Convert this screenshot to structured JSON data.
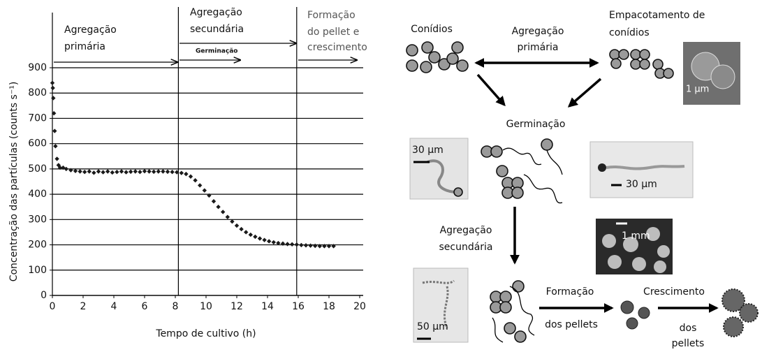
{
  "chart_data": {
    "type": "scatter",
    "x_label": "Tempo de cultivo (h)",
    "y_label": "Concentração das partículas (counts s⁻¹)",
    "x": [
      0,
      0.03,
      0.06,
      0.1,
      0.15,
      0.2,
      0.3,
      0.4,
      0.5,
      0.7,
      0.9,
      1.2,
      1.5,
      1.8,
      2.1,
      2.4,
      2.7,
      3.0,
      3.3,
      3.6,
      3.9,
      4.2,
      4.5,
      4.8,
      5.1,
      5.4,
      5.7,
      6.0,
      6.3,
      6.6,
      6.9,
      7.2,
      7.5,
      7.8,
      8.1,
      8.4,
      8.7,
      9.0,
      9.3,
      9.6,
      9.9,
      10.2,
      10.5,
      10.8,
      11.1,
      11.4,
      11.7,
      12.0,
      12.3,
      12.6,
      12.9,
      13.2,
      13.5,
      13.8,
      14.1,
      14.4,
      14.7,
      15.0,
      15.3,
      15.6,
      15.9,
      16.2,
      16.5,
      16.8,
      17.1,
      17.4,
      17.7,
      18.0,
      18.3
    ],
    "values": [
      840,
      820,
      780,
      720,
      650,
      590,
      540,
      515,
      505,
      505,
      500,
      495,
      492,
      490,
      488,
      490,
      485,
      490,
      487,
      490,
      486,
      488,
      490,
      487,
      489,
      490,
      488,
      491,
      490,
      489,
      490,
      490,
      489,
      488,
      487,
      484,
      480,
      470,
      455,
      435,
      415,
      395,
      372,
      350,
      330,
      310,
      292,
      276,
      262,
      250,
      240,
      232,
      225,
      219,
      214,
      210,
      207,
      205,
      203,
      202,
      201,
      199,
      198,
      197,
      196,
      195,
      195,
      195,
      195
    ],
    "color": "#1a1a1a",
    "xlim": [
      0,
      20
    ],
    "xticks": [
      0,
      2,
      4,
      6,
      8,
      10,
      12,
      14,
      16,
      18,
      20
    ],
    "ylim": [
      0,
      900
    ],
    "yticks": [
      0,
      100,
      200,
      300,
      400,
      500,
      600,
      700,
      800,
      900
    ],
    "grid": true,
    "phase_boundaries": [
      8.2,
      15.9
    ],
    "phase_labels": [
      [
        "Agregação",
        "primária"
      ],
      [
        "Agregação",
        "secundária"
      ],
      [
        "Formação",
        "do pellet e",
        "crescimento"
      ]
    ],
    "annotation": "Germinação"
  },
  "diagram": {
    "conidia": "Conídios",
    "primary": [
      "Agregação",
      "primária"
    ],
    "packing": [
      "Empacotamento de",
      "conídios"
    ],
    "scale_1um": "1 μm",
    "germination": "Germinação",
    "scale_30um_a": "30 μm",
    "scale_30um_b": "30 μm",
    "secondary": [
      "Agregação",
      "secundária"
    ],
    "scale_1mm": "1 mm",
    "scale_50um": "50 μm",
    "formation": [
      "Formação",
      "dos pellets"
    ],
    "growth": [
      "Crescimento",
      "dos",
      "pellets"
    ]
  }
}
